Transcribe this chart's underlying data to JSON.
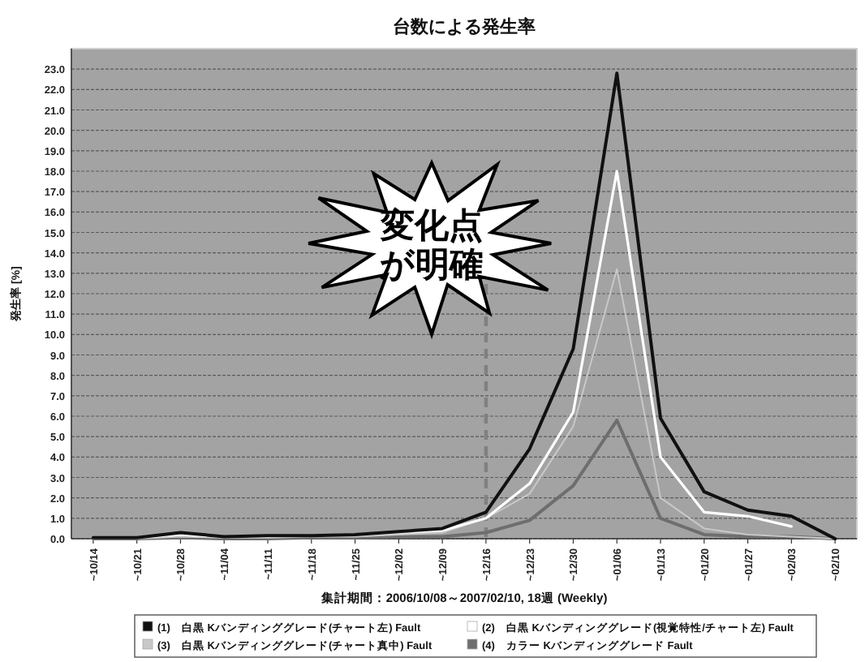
{
  "chart_data": {
    "type": "line",
    "title": "台数による発生率",
    "xlabel": "集計期間：2006/10/08～2007/02/10, 18週 (Weekly)",
    "ylabel": "発生率 [%]",
    "categories": [
      "~10/14",
      "~10/21",
      "~10/28",
      "~11/04",
      "~11/11",
      "~11/18",
      "~11/25",
      "~12/02",
      "~12/09",
      "~12/16",
      "~12/23",
      "~12/30",
      "~01/06",
      "~01/13",
      "~01/20",
      "~01/27",
      "~02/03",
      "~02/10"
    ],
    "series": [
      {
        "name": "(1)　白黒 Kバンディンググレード(チャート左) Fault",
        "color": "#111111",
        "values": [
          0.05,
          0.05,
          0.3,
          0.1,
          0.15,
          0.15,
          0.2,
          0.35,
          0.5,
          1.3,
          4.4,
          9.3,
          22.8,
          5.9,
          2.3,
          1.4,
          1.1,
          0.0
        ]
      },
      {
        "name": "(2)　白黒 Kバンディンググレード(視覚特性/チャート左) Fault",
        "color": "#ffffff",
        "values": [
          0.05,
          0.05,
          0.2,
          0.1,
          0.1,
          0.15,
          0.2,
          0.3,
          0.4,
          1.0,
          2.7,
          6.2,
          18.0,
          4.0,
          1.3,
          1.1,
          0.6,
          null
        ]
      },
      {
        "name": "(3)　白黒 Kバンディンググレード(チャート真中) Fault",
        "color": "#c8c8c8",
        "values": [
          0.0,
          0.0,
          0.1,
          0.05,
          0.05,
          0.1,
          0.1,
          0.2,
          0.3,
          1.0,
          2.2,
          5.5,
          13.2,
          2.0,
          0.5,
          0.2,
          0.1,
          0.0
        ]
      },
      {
        "name": "(4)　カラー Kバンディンググレード Fault",
        "color": "#6e6e6e",
        "values": [
          0.0,
          0.0,
          0.05,
          0.0,
          0.0,
          0.05,
          0.05,
          0.1,
          0.1,
          0.3,
          0.9,
          2.6,
          5.8,
          1.0,
          0.2,
          0.1,
          0.1,
          0.0
        ]
      }
    ],
    "ylim": [
      0,
      24
    ],
    "yticks": [
      {
        "value": 0,
        "label": "0.0"
      },
      {
        "value": 1,
        "label": "1.0"
      },
      {
        "value": 2,
        "label": "2.0"
      },
      {
        "value": 3,
        "label": "3.0"
      },
      {
        "value": 4,
        "label": "4.0"
      },
      {
        "value": 5,
        "label": "5.0"
      },
      {
        "value": 6,
        "label": "6.0"
      },
      {
        "value": 7,
        "label": "7.0"
      },
      {
        "value": 8,
        "label": "8.0"
      },
      {
        "value": 9,
        "label": "9.0"
      },
      {
        "value": 10,
        "label": "10.0"
      },
      {
        "value": 11,
        "label": "11.0"
      },
      {
        "value": 12,
        "label": "12.0"
      },
      {
        "value": 13,
        "label": "13.0"
      },
      {
        "value": 14,
        "label": "14.0"
      },
      {
        "value": 15,
        "label": "15.0"
      },
      {
        "value": 16,
        "label": "16.0"
      },
      {
        "value": 17,
        "label": "17.0"
      },
      {
        "value": 18,
        "label": "18.0"
      },
      {
        "value": 19,
        "label": "19.0"
      },
      {
        "value": 20,
        "label": "20.0"
      },
      {
        "value": 21,
        "label": "21.0"
      },
      {
        "value": 22,
        "label": "22.0"
      },
      {
        "value": 23,
        "label": "23.0"
      }
    ],
    "ref_lines": [
      {
        "axis": "x",
        "value": "~12/16",
        "color": "#808080",
        "line_style": "dashed"
      }
    ],
    "annotations": [
      "変化点",
      "が明確"
    ],
    "grid": "y",
    "legend": "bottom",
    "marker": "none",
    "line_style": "solid"
  }
}
